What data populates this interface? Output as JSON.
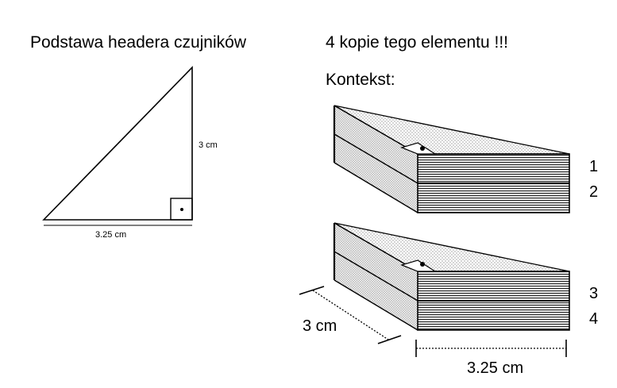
{
  "left_title": "Podstawa headera czujników",
  "right_title": "4 kopie tego elementu !!!",
  "context_label": "Kontekst:",
  "triangle": {
    "height_label": "3 cm",
    "base_label": "3.25 cm"
  },
  "stack": {
    "depth_label": "3 cm",
    "width_label": "3.25 cm",
    "layer_numbers": [
      "1",
      "2",
      "3",
      "4"
    ]
  }
}
